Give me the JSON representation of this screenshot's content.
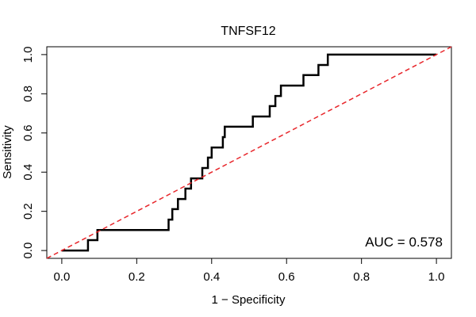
{
  "chart_data": {
    "type": "line",
    "title": "TNFSF12",
    "xlabel": "1 − Specificity",
    "ylabel": "Sensitivity",
    "xlim": [
      -0.04,
      1.04
    ],
    "ylim": [
      -0.04,
      1.04
    ],
    "x_ticks": [
      0.0,
      0.2,
      0.4,
      0.6,
      0.8,
      1.0
    ],
    "x_tick_labels": [
      "0.0",
      "0.2",
      "0.4",
      "0.6",
      "0.8",
      "1.0"
    ],
    "y_ticks": [
      0.0,
      0.2,
      0.4,
      0.6,
      0.8,
      1.0
    ],
    "y_tick_labels": [
      "0.0",
      "0.2",
      "0.4",
      "0.6",
      "0.8",
      "1.0"
    ],
    "grid": false,
    "annotation": "AUC = 0.578",
    "series": [
      {
        "style": "solid",
        "color": "#000000",
        "x": [
          0.0,
          0.07,
          0.07,
          0.095,
          0.095,
          0.285,
          0.285,
          0.295,
          0.295,
          0.31,
          0.31,
          0.33,
          0.33,
          0.345,
          0.345,
          0.36,
          0.36,
          0.375,
          0.375,
          0.39,
          0.39,
          0.4,
          0.4,
          0.43,
          0.43,
          0.435,
          0.435,
          0.51,
          0.51,
          0.555,
          0.555,
          0.57,
          0.57,
          0.585,
          0.585,
          0.645,
          0.645,
          0.685,
          0.685,
          0.71,
          0.71,
          1.0
        ],
        "y": [
          0.0,
          0.0,
          0.053,
          0.053,
          0.105,
          0.105,
          0.158,
          0.158,
          0.211,
          0.211,
          0.263,
          0.263,
          0.316,
          0.316,
          0.368,
          0.368,
          0.368,
          0.368,
          0.421,
          0.421,
          0.474,
          0.474,
          0.526,
          0.526,
          0.579,
          0.579,
          0.632,
          0.632,
          0.684,
          0.684,
          0.737,
          0.737,
          0.789,
          0.789,
          0.842,
          0.842,
          0.895,
          0.895,
          0.947,
          0.947,
          1.0,
          1.0
        ]
      },
      {
        "style": "dashed",
        "color": "#e8262b",
        "x": [
          -0.04,
          1.04
        ],
        "y": [
          -0.04,
          1.04
        ]
      }
    ]
  }
}
